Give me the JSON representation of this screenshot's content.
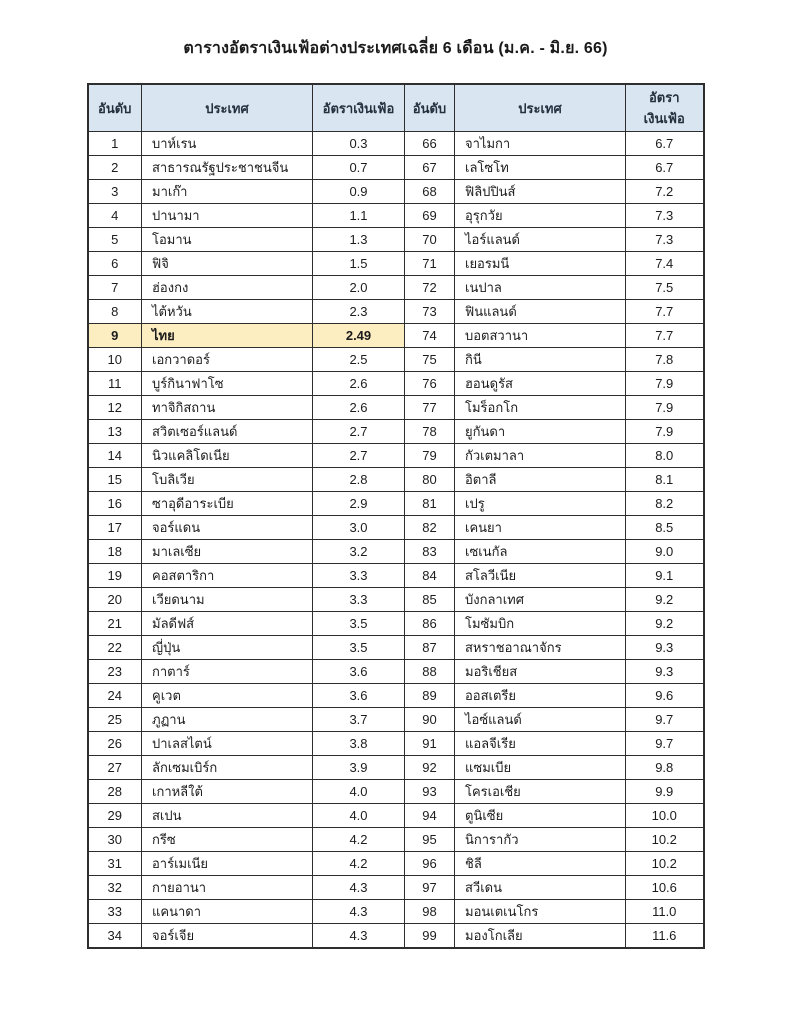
{
  "page": {
    "title": "ตารางอัตราเงินเฟ้อต่างประเทศเฉลี่ย  6 เดือน (ม.ค. - มิ.ย. 66)"
  },
  "table": {
    "headers": [
      "อันดับ",
      "ประเทศ",
      "อัตราเงินเฟ้อ",
      "อันดับ",
      "ประเทศ",
      "อัตราเงินเฟ้อ"
    ],
    "highlight_rank": 9,
    "colors": {
      "header_bg": "#d9e5f1",
      "highlight_bg": "#fdeec2",
      "border": "#2e2e2e"
    },
    "left": [
      {
        "rank": 1,
        "country": "บาห์เรน",
        "rate": "0.3"
      },
      {
        "rank": 2,
        "country": "สาธารณรัฐประชาชนจีน",
        "rate": "0.7"
      },
      {
        "rank": 3,
        "country": "มาเก๊า",
        "rate": "0.9"
      },
      {
        "rank": 4,
        "country": "ปานามา",
        "rate": "1.1"
      },
      {
        "rank": 5,
        "country": "โอมาน",
        "rate": "1.3"
      },
      {
        "rank": 6,
        "country": "ฟิจิ",
        "rate": "1.5"
      },
      {
        "rank": 7,
        "country": "ฮ่องกง",
        "rate": "2.0"
      },
      {
        "rank": 8,
        "country": "ไต้หวัน",
        "rate": "2.3"
      },
      {
        "rank": 9,
        "country": "ไทย",
        "rate": "2.49"
      },
      {
        "rank": 10,
        "country": "เอกวาดอร์",
        "rate": "2.5"
      },
      {
        "rank": 11,
        "country": "บูร์กินาฟาโซ",
        "rate": "2.6"
      },
      {
        "rank": 12,
        "country": "ทาจิกิสถาน",
        "rate": "2.6"
      },
      {
        "rank": 13,
        "country": "สวิตเซอร์แลนด์",
        "rate": "2.7"
      },
      {
        "rank": 14,
        "country": "นิวแคลิโดเนีย",
        "rate": "2.7"
      },
      {
        "rank": 15,
        "country": "โบลิเวีย",
        "rate": "2.8"
      },
      {
        "rank": 16,
        "country": "ซาอุดีอาระเบีย",
        "rate": "2.9"
      },
      {
        "rank": 17,
        "country": "จอร์แดน",
        "rate": "3.0"
      },
      {
        "rank": 18,
        "country": "มาเลเซีย",
        "rate": "3.2"
      },
      {
        "rank": 19,
        "country": "คอสตาริกา",
        "rate": "3.3"
      },
      {
        "rank": 20,
        "country": "เวียดนาม",
        "rate": "3.3"
      },
      {
        "rank": 21,
        "country": "มัลดีฟส์",
        "rate": "3.5"
      },
      {
        "rank": 22,
        "country": "ญี่ปุ่น",
        "rate": "3.5"
      },
      {
        "rank": 23,
        "country": "กาตาร์",
        "rate": "3.6"
      },
      {
        "rank": 24,
        "country": "คูเวต",
        "rate": "3.6"
      },
      {
        "rank": 25,
        "country": "ภูฏาน",
        "rate": "3.7"
      },
      {
        "rank": 26,
        "country": "ปาเลสไตน์",
        "rate": "3.8"
      },
      {
        "rank": 27,
        "country": "ลักเซมเบิร์ก",
        "rate": "3.9"
      },
      {
        "rank": 28,
        "country": "เกาหลีใต้",
        "rate": "4.0"
      },
      {
        "rank": 29,
        "country": "สเปน",
        "rate": "4.0"
      },
      {
        "rank": 30,
        "country": "กรีซ",
        "rate": "4.2"
      },
      {
        "rank": 31,
        "country": "อาร์เมเนีย",
        "rate": "4.2"
      },
      {
        "rank": 32,
        "country": "กายอานา",
        "rate": "4.3"
      },
      {
        "rank": 33,
        "country": "แคนาดา",
        "rate": "4.3"
      },
      {
        "rank": 34,
        "country": "จอร์เจีย",
        "rate": "4.3"
      }
    ],
    "right": [
      {
        "rank": 66,
        "country": "จาไมกา",
        "rate": "6.7"
      },
      {
        "rank": 67,
        "country": "เลโซโท",
        "rate": "6.7"
      },
      {
        "rank": 68,
        "country": "ฟิลิปปินส์",
        "rate": "7.2"
      },
      {
        "rank": 69,
        "country": "อุรุกวัย",
        "rate": "7.3"
      },
      {
        "rank": 70,
        "country": "ไอร์แลนด์",
        "rate": "7.3"
      },
      {
        "rank": 71,
        "country": "เยอรมนี",
        "rate": "7.4"
      },
      {
        "rank": 72,
        "country": "เนปาล",
        "rate": "7.5"
      },
      {
        "rank": 73,
        "country": "ฟินแลนด์",
        "rate": "7.7"
      },
      {
        "rank": 74,
        "country": "บอตสวานา",
        "rate": "7.7"
      },
      {
        "rank": 75,
        "country": "กินี",
        "rate": "7.8"
      },
      {
        "rank": 76,
        "country": "ฮอนดูรัส",
        "rate": "7.9"
      },
      {
        "rank": 77,
        "country": "โมร็อกโก",
        "rate": "7.9"
      },
      {
        "rank": 78,
        "country": "ยูกันดา",
        "rate": "7.9"
      },
      {
        "rank": 79,
        "country": "กัวเตมาลา",
        "rate": "8.0"
      },
      {
        "rank": 80,
        "country": "อิตาลี",
        "rate": "8.1"
      },
      {
        "rank": 81,
        "country": "เปรู",
        "rate": "8.2"
      },
      {
        "rank": 82,
        "country": "เคนยา",
        "rate": "8.5"
      },
      {
        "rank": 83,
        "country": "เซเนกัล",
        "rate": "9.0"
      },
      {
        "rank": 84,
        "country": "สโลวีเนีย",
        "rate": "9.1"
      },
      {
        "rank": 85,
        "country": "บังกลาเทศ",
        "rate": "9.2"
      },
      {
        "rank": 86,
        "country": "โมซัมบิก",
        "rate": "9.2"
      },
      {
        "rank": 87,
        "country": "สหราชอาณาจักร",
        "rate": "9.3"
      },
      {
        "rank": 88,
        "country": "มอริเชียส",
        "rate": "9.3"
      },
      {
        "rank": 89,
        "country": "ออสเตรีย",
        "rate": "9.6"
      },
      {
        "rank": 90,
        "country": "ไอซ์แลนด์",
        "rate": "9.7"
      },
      {
        "rank": 91,
        "country": "แอลจีเรีย",
        "rate": "9.7"
      },
      {
        "rank": 92,
        "country": "แซมเบีย",
        "rate": "9.8"
      },
      {
        "rank": 93,
        "country": "โครเอเชีย",
        "rate": "9.9"
      },
      {
        "rank": 94,
        "country": "ตูนิเซีย",
        "rate": "10.0"
      },
      {
        "rank": 95,
        "country": "นิการากัว",
        "rate": "10.2"
      },
      {
        "rank": 96,
        "country": "ชิลี",
        "rate": "10.2"
      },
      {
        "rank": 97,
        "country": "สวีเดน",
        "rate": "10.6"
      },
      {
        "rank": 98,
        "country": "มอนเตเนโกร",
        "rate": "11.0"
      },
      {
        "rank": 99,
        "country": "มองโกเลีย",
        "rate": "11.6"
      }
    ]
  }
}
